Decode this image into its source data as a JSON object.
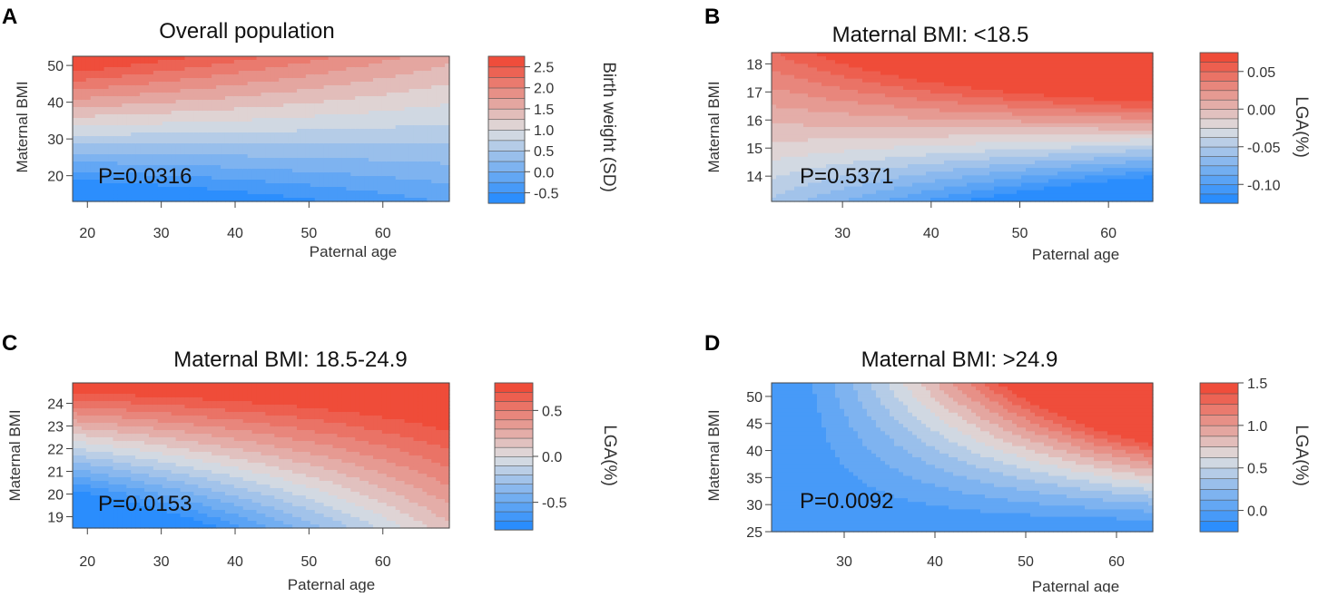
{
  "chart_data": [
    {
      "id": "a",
      "type": "heatmap",
      "panel_letter": "A",
      "title": "Overall population",
      "xlabel": "Paternal age",
      "ylabel": "Maternal BMI",
      "xlim": [
        18,
        69
      ],
      "ylim": [
        13,
        52.5
      ],
      "xticks": [
        "20",
        "30",
        "40",
        "50",
        "60"
      ],
      "yticks": [
        "20",
        "30",
        "40",
        "50"
      ],
      "p_value": "P=0.0316",
      "legend": {
        "title": "Birth weight (SD)",
        "range": [
          -0.75,
          2.75
        ],
        "ticks": [
          "2.5",
          "2.0",
          "1.5",
          "1.0",
          "0.5",
          "0.0",
          "-0.5"
        ],
        "levels": 14
      },
      "surface": {
        "base": 0.92,
        "bmi_ref": 34,
        "bmi_slope": 0.078,
        "age_ref": 40,
        "age_slope": -0.006,
        "interaction": -0.0011
      }
    },
    {
      "id": "b",
      "type": "heatmap",
      "panel_letter": "B",
      "title": "Maternal BMI: <18.5",
      "xlabel": "Paternal age",
      "ylabel": "Maternal BMI",
      "xlim": [
        22,
        65
      ],
      "ylim": [
        13.1,
        18.4
      ],
      "xticks": [
        "30",
        "40",
        "50",
        "60"
      ],
      "yticks": [
        "14",
        "15",
        "16",
        "17",
        "18"
      ],
      "p_value": "P=0.5371",
      "legend": {
        "title": "LGA(%)",
        "range": [
          -0.125,
          0.075
        ],
        "ticks": [
          "0.05",
          "0.00",
          "-0.05",
          "-0.10"
        ],
        "levels": 16
      },
      "surface": {
        "base": -0.005,
        "bmi_ref": 15.6,
        "bmi_slope": 0.028,
        "age_ref": 30,
        "age_slope": 0.0,
        "interaction": 0.0011
      }
    },
    {
      "id": "c",
      "type": "heatmap",
      "panel_letter": "C",
      "title": "Maternal BMI: 18.5-24.9",
      "xlabel": "Paternal age",
      "ylabel": "Maternal BMI",
      "xlim": [
        18,
        69
      ],
      "ylim": [
        18.5,
        24.9
      ],
      "xticks": [
        "20",
        "30",
        "40",
        "50",
        "60"
      ],
      "yticks": [
        "19",
        "20",
        "21",
        "22",
        "23",
        "24"
      ],
      "p_value": "P=0.0153",
      "legend": {
        "title": "LGA(%)",
        "range": [
          -0.8,
          0.8
        ],
        "ticks": [
          "0.5",
          "0.0",
          "-0.5"
        ],
        "levels": 16
      },
      "surface": {
        "base": 0.0,
        "bmi_ref": 21.5,
        "bmi_slope": 0.26,
        "age_ref": 35,
        "age_slope": 0.016,
        "interaction": -0.004
      }
    },
    {
      "id": "d",
      "type": "heatmap",
      "panel_letter": "D",
      "title": "Maternal BMI: >24.9",
      "xlabel": "Paternal age",
      "ylabel": "Maternal BMI",
      "xlim": [
        22,
        64
      ],
      "ylim": [
        25,
        52.5
      ],
      "xticks": [
        "30",
        "40",
        "50",
        "60"
      ],
      "yticks": [
        "25",
        "30",
        "35",
        "40",
        "45",
        "50"
      ],
      "p_value": "P=0.0092",
      "legend": {
        "title": "LGA(%)",
        "range": [
          -0.25,
          1.5
        ],
        "ticks": [
          "1.5",
          "1.0",
          "0.5",
          "0.0"
        ],
        "levels": 14
      },
      "surface": {
        "type": "product",
        "offset": -0.12,
        "coef": 0.00092,
        "bmi_ref": 25.5,
        "age_ref": 24,
        "curve": 1.15
      }
    }
  ]
}
